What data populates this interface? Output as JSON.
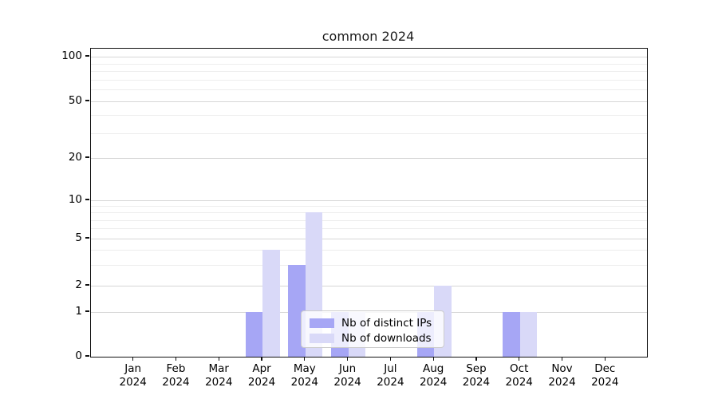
{
  "title": "common 2024",
  "legend": {
    "items": [
      {
        "label": "Nb of distinct IPs",
        "color": "#a6a6f5"
      },
      {
        "label": "Nb of downloads",
        "color": "#d9d9f8"
      }
    ]
  },
  "colors": {
    "distinct_ips_bar": "#a6a6f5",
    "downloads_bar": "#d9d9f8",
    "major_gridline": "#d6d6d6",
    "minor_gridline": "#ededed",
    "axis": "#111111"
  },
  "chart_data": {
    "type": "bar",
    "title": "common 2024",
    "categories": [
      "Jan 2024",
      "Feb 2024",
      "Mar 2024",
      "Apr 2024",
      "May 2024",
      "Jun 2024",
      "Jul 2024",
      "Aug 2024",
      "Sep 2024",
      "Oct 2024",
      "Nov 2024",
      "Dec 2024"
    ],
    "series": [
      {
        "name": "Nb of distinct IPs",
        "color": "#a6a6f5",
        "values": [
          0,
          0,
          0,
          1,
          3,
          1,
          0,
          1,
          0,
          1,
          0,
          0
        ]
      },
      {
        "name": "Nb of downloads",
        "color": "#d9d9f8",
        "values": [
          0,
          0,
          0,
          4,
          8,
          1,
          0,
          2,
          0,
          1,
          0,
          0
        ]
      }
    ],
    "xlabel": "",
    "ylabel": "",
    "yscale": "symlog",
    "yticks": [
      0,
      1,
      2,
      5,
      10,
      20,
      50,
      100
    ],
    "minor_yticks": [
      3,
      4,
      6,
      7,
      8,
      9,
      30,
      40,
      60,
      70,
      80,
      90
    ],
    "ylim": [
      0,
      110
    ],
    "grid": true,
    "legend_position": "lower center (inside axes)"
  }
}
